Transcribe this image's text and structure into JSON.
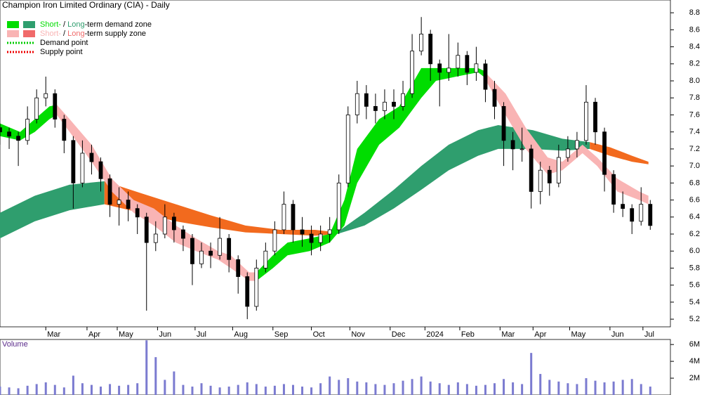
{
  "chart_data": [
    {
      "type": "candlestick",
      "title": "Champion Iron Limited Ordinary (CIA) - Daily",
      "xlim": [
        0,
        366
      ],
      "xticks": [
        {
          "value": 25,
          "label": "Mar"
        },
        {
          "value": 47.5,
          "label": "Apr"
        },
        {
          "value": 64,
          "label": "May"
        },
        {
          "value": 86,
          "label": "Jun"
        },
        {
          "value": 106.5,
          "label": "Jul"
        },
        {
          "value": 127,
          "label": "Aug"
        },
        {
          "value": 149,
          "label": "Sep"
        },
        {
          "value": 170,
          "label": "Oct"
        },
        {
          "value": 191,
          "label": "Nov"
        },
        {
          "value": 213,
          "label": "Dec"
        },
        {
          "value": 232,
          "label": "2024"
        },
        {
          "value": 251,
          "label": "Feb"
        },
        {
          "value": 273,
          "label": "Mar"
        },
        {
          "value": 291,
          "label": "Apr"
        },
        {
          "value": 311,
          "label": "May"
        },
        {
          "value": 333,
          "label": "Jun"
        },
        {
          "value": 351,
          "label": "Jul"
        }
      ],
      "ylim": [
        5.11,
        8.95
      ],
      "yticks": [
        5.2,
        5.4,
        5.6,
        5.8,
        {
          "value": 6,
          "label": "6.0"
        },
        6.2,
        6.4,
        6.6,
        6.8,
        {
          "value": 7,
          "label": "7.0"
        },
        7.2,
        7.4,
        7.6,
        7.8,
        {
          "value": 8,
          "label": "8.0"
        },
        8.2,
        8.4,
        8.6,
        8.8
      ],
      "up_color": "#ffffff",
      "down_color": "#000000",
      "x": [
        0,
        5,
        10,
        15,
        20,
        25,
        30,
        35,
        40,
        45,
        50,
        55,
        60,
        65,
        70,
        75,
        80,
        85,
        90,
        95,
        100,
        105,
        110,
        115,
        120,
        125,
        130,
        135,
        140,
        145,
        150,
        155,
        160,
        165,
        170,
        175,
        180,
        185,
        190,
        195,
        200,
        205,
        210,
        215,
        220,
        225,
        230,
        235,
        240,
        245,
        250,
        255,
        260,
        265,
        270,
        275,
        280,
        285,
        290,
        295,
        300,
        305,
        310,
        315,
        320,
        325,
        330,
        335,
        340,
        345,
        350,
        355
      ],
      "open": [
        7.45,
        7.4,
        7.35,
        7.3,
        7.55,
        7.8,
        7.85,
        7.55,
        7.3,
        6.8,
        7.15,
        7.05,
        6.85,
        6.55,
        6.6,
        6.5,
        6.4,
        6.1,
        6.2,
        6.4,
        6.25,
        6.15,
        5.85,
        6.0,
        5.95,
        6.15,
        5.9,
        5.7,
        5.35,
        5.8,
        6.0,
        6.25,
        6.55,
        6.25,
        6.2,
        6.1,
        6.2,
        6.25,
        6.8,
        7.6,
        7.85,
        7.7,
        7.65,
        7.75,
        7.7,
        7.85,
        8.35,
        8.55,
        8.2,
        8.1,
        8.15,
        8.3,
        8.1,
        8.2,
        7.9,
        7.7,
        7.3,
        7.2,
        7.2,
        6.7,
        6.95,
        6.8,
        7.1,
        7.2,
        7.3,
        7.75,
        7.4,
        6.9,
        6.55,
        6.5,
        6.35,
        6.55
      ],
      "high": [
        7.5,
        7.45,
        7.4,
        7.7,
        7.9,
        8.05,
        7.9,
        7.6,
        7.35,
        7.3,
        7.25,
        7.1,
        6.9,
        6.75,
        6.7,
        6.55,
        6.45,
        6.35,
        6.55,
        6.45,
        6.3,
        6.2,
        6.1,
        6.1,
        6.4,
        6.2,
        5.95,
        5.75,
        5.9,
        6.1,
        6.35,
        6.7,
        6.6,
        6.4,
        6.3,
        6.3,
        6.4,
        6.9,
        7.7,
        8.0,
        7.95,
        7.85,
        7.9,
        7.9,
        8.0,
        8.55,
        8.75,
        8.6,
        8.25,
        8.55,
        8.45,
        8.35,
        8.4,
        8.25,
        8.0,
        7.75,
        7.4,
        7.45,
        7.25,
        7.05,
        7.0,
        7.25,
        7.35,
        7.4,
        7.95,
        7.8,
        7.45,
        6.95,
        6.7,
        6.55,
        6.75,
        6.6
      ],
      "low": [
        7.25,
        7.2,
        7.0,
        7.25,
        7.5,
        7.7,
        7.45,
        7.15,
        6.5,
        6.75,
        6.9,
        6.7,
        6.4,
        6.3,
        6.35,
        6.2,
        5.3,
        6.0,
        6.15,
        6.1,
        6.0,
        5.6,
        5.8,
        5.8,
        5.9,
        5.75,
        5.5,
        5.2,
        5.3,
        5.75,
        5.95,
        6.2,
        6.1,
        6.05,
        5.95,
        6.0,
        6.1,
        6.2,
        6.75,
        7.5,
        7.55,
        7.5,
        7.55,
        7.55,
        7.65,
        7.8,
        8.3,
        8.0,
        7.7,
        8.0,
        8.05,
        7.95,
        8.0,
        7.75,
        7.55,
        7.0,
        6.95,
        7.05,
        6.5,
        6.55,
        6.65,
        6.75,
        7.05,
        7.1,
        7.25,
        7.25,
        6.7,
        6.45,
        6.4,
        6.2,
        6.3,
        6.25
      ],
      "close": [
        7.4,
        7.35,
        7.3,
        7.55,
        7.8,
        7.85,
        7.55,
        7.3,
        6.8,
        7.15,
        7.05,
        6.85,
        6.55,
        6.6,
        6.5,
        6.4,
        6.1,
        6.2,
        6.4,
        6.25,
        6.15,
        5.85,
        6.0,
        5.95,
        6.15,
        5.9,
        5.7,
        5.35,
        5.8,
        6.0,
        6.25,
        6.55,
        6.25,
        6.2,
        6.1,
        6.2,
        6.25,
        6.8,
        7.6,
        7.85,
        7.7,
        7.65,
        7.75,
        7.7,
        7.85,
        8.35,
        8.55,
        8.2,
        8.1,
        8.15,
        8.3,
        8.1,
        8.2,
        7.9,
        7.7,
        7.3,
        7.2,
        7.2,
        6.7,
        6.95,
        6.8,
        7.1,
        7.2,
        7.3,
        7.75,
        7.4,
        6.9,
        6.55,
        6.5,
        6.35,
        6.55,
        6.3
      ],
      "zones": [
        {
          "color": "#2f9e6e",
          "x": [
            0,
            19,
            38,
            57
          ],
          "upper": [
            6.45,
            6.65,
            6.78,
            6.82
          ],
          "lower": [
            6.15,
            6.35,
            6.48,
            6.55
          ]
        },
        {
          "color": "#f26a1e",
          "x": [
            57,
            77,
            96,
            115,
            134,
            153,
            172,
            184
          ],
          "upper": [
            6.82,
            6.68,
            6.55,
            6.42,
            6.3,
            6.25,
            6.25,
            6.22
          ],
          "lower": [
            6.55,
            6.45,
            6.35,
            6.28,
            6.22,
            6.2,
            6.18,
            6.2
          ]
        },
        {
          "color": "#2f9e6e",
          "x": [
            184,
            199,
            215,
            230,
            245,
            261,
            272,
            291,
            307,
            322
          ],
          "upper": [
            6.22,
            6.45,
            6.72,
            7.0,
            7.25,
            7.42,
            7.48,
            7.42,
            7.32,
            7.28
          ],
          "lower": [
            6.2,
            6.3,
            6.5,
            6.72,
            6.95,
            7.12,
            7.2,
            7.2,
            7.18,
            7.2
          ]
        },
        {
          "color": "#f26a1e",
          "x": [
            322,
            333,
            345,
            354
          ],
          "upper": [
            7.28,
            7.22,
            7.12,
            7.05
          ],
          "lower": [
            7.2,
            7.12,
            7.05,
            7.02
          ]
        },
        {
          "color": "#00dd00",
          "x": [
            0,
            11,
            19,
            27,
            31
          ],
          "upper": [
            7.5,
            7.4,
            7.55,
            7.7,
            7.72
          ],
          "lower": [
            7.35,
            7.3,
            7.4,
            7.55,
            7.6
          ]
        },
        {
          "color": "#f9b4b4",
          "x": [
            31,
            38,
            50,
            61,
            73,
            84,
            96,
            107,
            119,
            126,
            136,
            140
          ],
          "upper": [
            7.72,
            7.55,
            7.25,
            6.85,
            6.6,
            6.5,
            6.3,
            6.15,
            6.0,
            5.95,
            5.75,
            5.75
          ],
          "lower": [
            7.6,
            7.4,
            7.05,
            6.7,
            6.45,
            6.3,
            6.1,
            6.0,
            5.9,
            5.8,
            5.65,
            5.65
          ]
        },
        {
          "color": "#00dd00",
          "x": [
            140,
            149,
            157,
            169,
            180,
            188,
            195,
            207,
            218,
            230,
            238,
            249,
            261,
            264
          ],
          "upper": [
            5.75,
            5.95,
            6.1,
            6.15,
            6.2,
            6.6,
            7.2,
            7.55,
            7.7,
            8.15,
            8.15,
            8.15,
            8.15,
            8.12
          ],
          "lower": [
            5.65,
            5.8,
            5.95,
            6.0,
            6.1,
            6.3,
            6.8,
            7.25,
            7.45,
            7.8,
            8.0,
            8.05,
            8.1,
            8.05
          ]
        },
        {
          "color": "#f9b4b4",
          "x": [
            264,
            276,
            287,
            299,
            307,
            318,
            326,
            337,
            349,
            354
          ],
          "upper": [
            8.12,
            7.85,
            7.45,
            7.1,
            7.05,
            7.25,
            7.1,
            6.85,
            6.7,
            6.65
          ],
          "lower": [
            8.05,
            7.6,
            7.2,
            6.9,
            6.95,
            7.15,
            7.0,
            6.7,
            6.6,
            6.55
          ]
        }
      ],
      "legend": [
        {
          "short": "Short-",
          "sep": " / ",
          "long": "Long",
          "rest": "-term demand zone",
          "short_color": "#00dd00",
          "long_color": "#2f9e6e"
        },
        {
          "short": "Short-",
          "sep": " / ",
          "long": "Long",
          "rest": "-term supply zone",
          "short_color": "#f9b4b4",
          "long_color": "#f06a6a"
        },
        {
          "label": "Demand point",
          "color": "#00cc00"
        },
        {
          "label": "Supply point",
          "color": "#ee0000"
        }
      ]
    },
    {
      "type": "bar",
      "title": "Volume",
      "color": "#7b7bd0",
      "ylim": [
        0,
        6.6
      ],
      "yticks": [
        {
          "value": 2,
          "label": "2M"
        },
        {
          "value": 4,
          "label": "4M"
        },
        {
          "value": 6,
          "label": "6M"
        }
      ],
      "x": [
        0,
        5,
        10,
        15,
        20,
        25,
        30,
        35,
        40,
        45,
        50,
        55,
        60,
        65,
        70,
        75,
        80,
        85,
        90,
        95,
        100,
        105,
        110,
        115,
        120,
        125,
        130,
        135,
        140,
        145,
        150,
        155,
        160,
        165,
        170,
        175,
        180,
        185,
        190,
        195,
        200,
        205,
        210,
        215,
        220,
        225,
        230,
        235,
        240,
        245,
        250,
        255,
        260,
        265,
        270,
        275,
        280,
        285,
        290,
        295,
        300,
        305,
        310,
        315,
        320,
        325,
        330,
        335,
        340,
        345,
        350,
        355
      ],
      "values": [
        1.0,
        0.9,
        0.8,
        1.1,
        1.3,
        1.5,
        1.2,
        0.9,
        2.3,
        1.4,
        1.2,
        1.0,
        1.3,
        1.1,
        1.2,
        1.4,
        6.5,
        4.5,
        1.8,
        2.8,
        1.2,
        1.0,
        1.4,
        1.1,
        0.9,
        1.0,
        1.2,
        1.5,
        1.3,
        1.0,
        1.1,
        1.3,
        1.2,
        1.0,
        0.9,
        1.4,
        2.2,
        1.8,
        2.0,
        1.6,
        1.5,
        1.3,
        1.2,
        1.4,
        1.7,
        1.9,
        2.2,
        1.6,
        1.4,
        1.2,
        1.5,
        1.3,
        1.1,
        1.2,
        1.4,
        1.9,
        1.5,
        1.3,
        5.0,
        2.5,
        1.8,
        1.6,
        1.4,
        1.3,
        2.0,
        1.7,
        1.5,
        1.6,
        1.8,
        1.9,
        1.3,
        1.0
      ]
    }
  ]
}
